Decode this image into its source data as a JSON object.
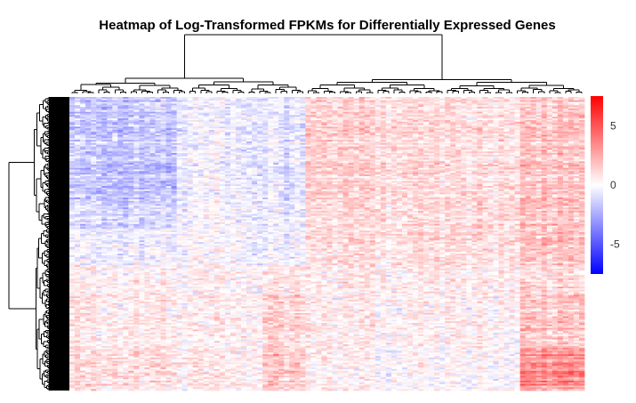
{
  "chart_data": {
    "type": "heatmap",
    "title": "Heatmap of Log-Transformed FPKMs for Differentially Expressed Genes",
    "xlabel": "",
    "ylabel": "",
    "colorbar": {
      "range": [
        -7.5,
        7.5
      ],
      "ticks": [
        5,
        0,
        -5
      ],
      "tick_labels": [
        "5",
        "0",
        "-5"
      ],
      "colors": {
        "low": "#0000ff",
        "mid": "#ffffff",
        "high": "#ff0000"
      }
    },
    "column_clusters": [
      {
        "count": 20,
        "pattern": [
          -1.6,
          -1.2,
          -0.4,
          0.4,
          0.6,
          1.0,
          -0.6
        ]
      },
      {
        "count": 16,
        "pattern": [
          -0.4,
          -0.2,
          0.0,
          0.3,
          0.5,
          0.6,
          -0.4
        ]
      },
      {
        "count": 8,
        "pattern": [
          -0.8,
          -0.6,
          -0.4,
          0.6,
          1.2,
          1.4,
          -1.0
        ]
      },
      {
        "count": 20,
        "pattern": [
          1.2,
          1.0,
          0.8,
          0.5,
          0.4,
          0.2,
          -1.6
        ]
      },
      {
        "count": 20,
        "pattern": [
          1.0,
          1.1,
          1.0,
          0.6,
          0.4,
          0.2,
          -1.2
        ]
      },
      {
        "count": 12,
        "pattern": [
          1.6,
          1.8,
          1.6,
          1.0,
          1.6,
          3.2,
          -0.8
        ]
      }
    ],
    "row_clusters": [
      {
        "count": 62
      },
      {
        "count": 18
      },
      {
        "count": 22
      },
      {
        "count": 18
      },
      {
        "count": 32
      },
      {
        "count": 26
      }
    ],
    "grid": false,
    "legend": "right"
  }
}
